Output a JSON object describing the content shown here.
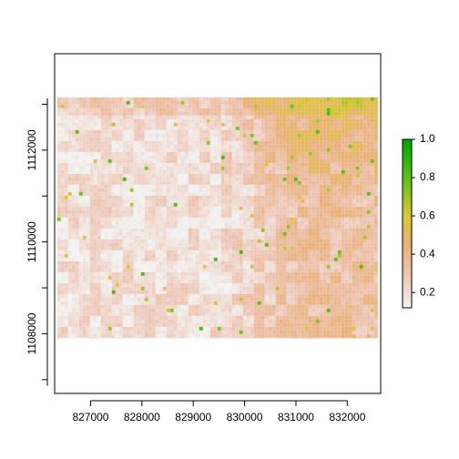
{
  "chart_data": {
    "type": "heatmap",
    "title": "",
    "xlabel": "",
    "ylabel": "",
    "xlim": [
      826300,
      832650
    ],
    "ylim": [
      1106700,
      1114100
    ],
    "raster_extent": {
      "x": [
        826350,
        832600
      ],
      "y": [
        1107900,
        1113150
      ]
    },
    "x_ticks": [
      827000,
      828000,
      829000,
      830000,
      831000,
      832000
    ],
    "x_tick_labels": [
      "827000",
      "828000",
      "829000",
      "830000",
      "831000",
      "832000"
    ],
    "y_ticks": [
      1108000,
      1110000,
      1112000
    ],
    "y_tick_labels": [
      "1108000",
      "1110000",
      "1112000"
    ],
    "value_range": [
      0.12,
      1.0
    ],
    "description_regions": [
      {
        "area": "west and center",
        "typical_value": 0.2
      },
      {
        "area": "east half",
        "typical_value": 0.35
      },
      {
        "area": "northeast",
        "typical_value": 0.45,
        "peak": 0.85
      }
    ],
    "colorbar": {
      "ticks": [
        0.2,
        0.4,
        0.6,
        0.8,
        1.0
      ],
      "tick_labels": [
        "0.2",
        "0.4",
        "0.6",
        "0.8",
        "1.0"
      ],
      "stops": [
        {
          "value": 0.12,
          "color": "#f2f2f2"
        },
        {
          "value": 0.3,
          "color": "#eec4b3"
        },
        {
          "value": 0.45,
          "color": "#e9b179"
        },
        {
          "value": 0.6,
          "color": "#dbc636"
        },
        {
          "value": 0.8,
          "color": "#5dbf1a"
        },
        {
          "value": 1.0,
          "color": "#00a600"
        }
      ]
    },
    "grid": false,
    "legend_position": "right"
  }
}
